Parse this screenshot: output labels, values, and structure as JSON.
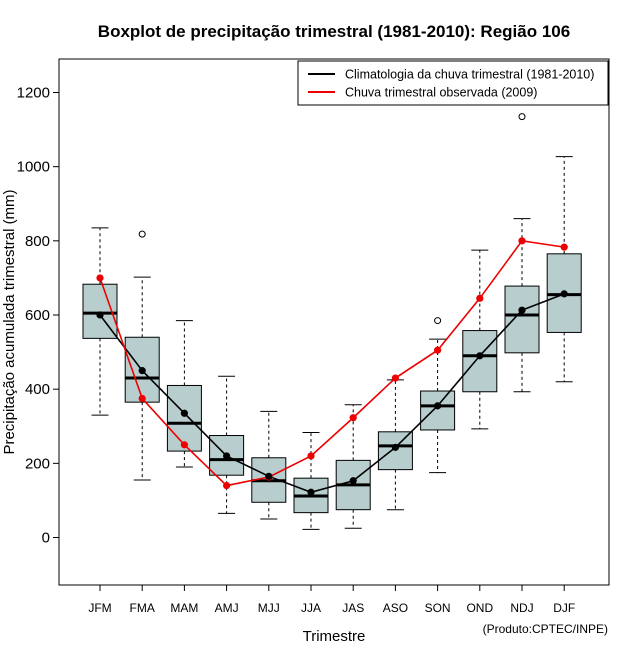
{
  "chart_data": {
    "type": "boxplot",
    "title": "Boxplot de precipitação trimestral (1981-2010): Região 106",
    "xlabel": "Trimestre",
    "ylabel": "Precipitação acumulada trimestral (mm)",
    "credit": "(Produto:CPTEC/INPE)",
    "ylim": [
      -130,
      1290
    ],
    "yticks": [
      0,
      200,
      400,
      600,
      800,
      1000,
      1200
    ],
    "categories": [
      "JFM",
      "FMA",
      "MAM",
      "AMJ",
      "MJJ",
      "JJA",
      "JAS",
      "ASO",
      "SON",
      "OND",
      "NDJ",
      "DJF"
    ],
    "boxes": [
      {
        "min": 330,
        "q1": 537,
        "median": 605,
        "q3": 683,
        "max": 835,
        "outliers": []
      },
      {
        "min": 155,
        "q1": 365,
        "median": 430,
        "q3": 540,
        "max": 702,
        "outliers": [
          818
        ]
      },
      {
        "min": 190,
        "q1": 233,
        "median": 308,
        "q3": 410,
        "max": 585,
        "outliers": []
      },
      {
        "min": 65,
        "q1": 168,
        "median": 210,
        "q3": 275,
        "max": 435,
        "outliers": []
      },
      {
        "min": 50,
        "q1": 95,
        "median": 153,
        "q3": 215,
        "max": 340,
        "outliers": []
      },
      {
        "min": 22,
        "q1": 67,
        "median": 112,
        "q3": 160,
        "max": 283,
        "outliers": []
      },
      {
        "min": 25,
        "q1": 75,
        "median": 142,
        "q3": 208,
        "max": 358,
        "outliers": []
      },
      {
        "min": 75,
        "q1": 183,
        "median": 247,
        "q3": 285,
        "max": 425,
        "outliers": []
      },
      {
        "min": 175,
        "q1": 290,
        "median": 355,
        "q3": 395,
        "max": 535,
        "outliers": [
          585
        ]
      },
      {
        "min": 293,
        "q1": 393,
        "median": 490,
        "q3": 558,
        "max": 775,
        "outliers": []
      },
      {
        "min": 393,
        "q1": 498,
        "median": 600,
        "q3": 678,
        "max": 860,
        "outliers": [
          1135
        ]
      },
      {
        "min": 420,
        "q1": 553,
        "median": 655,
        "q3": 765,
        "max": 1027,
        "outliers": []
      }
    ],
    "series": [
      {
        "name": "Climatologia da chuva trimestral (1981-2010)",
        "color": "#000000",
        "values": [
          600,
          450,
          335,
          220,
          165,
          122,
          153,
          243,
          355,
          490,
          613,
          657
        ]
      },
      {
        "name": "Chuva trimestral observada (2009)",
        "color": "#ee0000",
        "values": [
          700,
          375,
          250,
          140,
          163,
          220,
          323,
          430,
          505,
          645,
          800,
          783
        ]
      }
    ],
    "box_fill": "#b8cece",
    "legend_position": "top-right"
  }
}
